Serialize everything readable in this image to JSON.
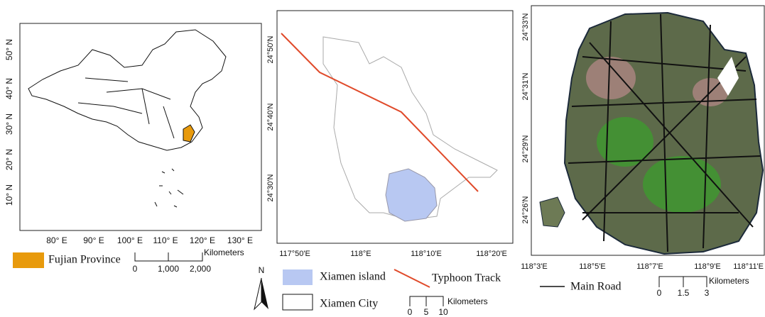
{
  "panels": [
    {
      "xticks": [
        "80° E",
        "90° E",
        "100° E",
        "110° E",
        "120° E",
        "130° E"
      ],
      "yticks": [
        "50° N",
        "40° N",
        "30° N",
        "20° N",
        "10° N"
      ],
      "legend": "Fujian Province",
      "scale": {
        "unit": "Kilometers",
        "labels": [
          "0",
          "1,000",
          "2,000"
        ]
      }
    },
    {
      "xticks": [
        "117°50'E",
        "118°E",
        "118°10'E",
        "118°20'E"
      ],
      "yticks": [
        "24°50'N",
        "24°40'N",
        "24°30'N"
      ],
      "legend": [
        "Xiamen island",
        "Typhoon Track",
        "Xiamen City"
      ],
      "north": "N",
      "scale": {
        "unit": "Kilometers",
        "labels": [
          "0",
          "5",
          "10"
        ]
      }
    },
    {
      "xticks": [
        "118°3'E",
        "118°5'E",
        "118°7'E",
        "118°9'E",
        "118°11'E"
      ],
      "yticks": [
        "24°33'N",
        "24°31'N",
        "24°29'N",
        "24°26'N"
      ],
      "legend": "Main Road",
      "scale": {
        "unit": "Kilometers",
        "labels": [
          "0",
          "1.5",
          "3"
        ]
      }
    }
  ]
}
